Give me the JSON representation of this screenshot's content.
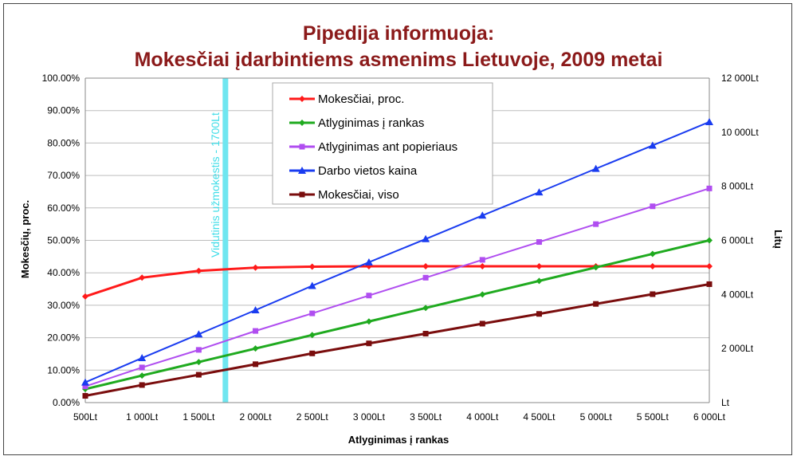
{
  "chart_data": {
    "type": "line",
    "title": [
      "Pipedija informuoja:",
      "Mokesčiai įdarbintiems asmenims Lietuvoje, 2009 metai"
    ],
    "xlabel": "Atlyginimas į rankas",
    "ylabel_left": "Mokesčių, proc.",
    "ylabel_right": "Litų",
    "x": [
      500,
      1000,
      1500,
      2000,
      2500,
      3000,
      3500,
      4000,
      4500,
      5000,
      5500,
      6000
    ],
    "x_tick_labels": [
      "500Lt",
      "1 000Lt",
      "1 500Lt",
      "2 000Lt",
      "2 500Lt",
      "3 000Lt",
      "3 500Lt",
      "4 000Lt",
      "4 500Lt",
      "5 000Lt",
      "5 500Lt",
      "6 000Lt"
    ],
    "ylim_left": [
      0,
      1
    ],
    "y_left_tick_labels": [
      "0.00%",
      "10.00%",
      "20.00%",
      "30.00%",
      "40.00%",
      "50.00%",
      "60.00%",
      "70.00%",
      "80.00%",
      "90.00%",
      "100.00%"
    ],
    "ylim_right": [
      0,
      12000
    ],
    "y_right_tick_labels": [
      "Lt",
      "2 000Lt",
      "4 000Lt",
      "6 000Lt",
      "8 000Lt",
      "10 000Lt",
      "12 000Lt"
    ],
    "grid": "horizontal",
    "legend_position": "top-center",
    "series": [
      {
        "name": "Mokesčiai, proc.",
        "axis": "left",
        "color": "#ff1a1a",
        "marker": "diamond",
        "values": [
          0.327,
          0.385,
          0.406,
          0.416,
          0.419,
          0.42,
          0.42,
          0.42,
          0.42,
          0.42,
          0.42,
          0.42
        ]
      },
      {
        "name": "Atlyginimas į rankas",
        "axis": "right",
        "color": "#1faa1f",
        "marker": "diamond",
        "values": [
          500,
          1000,
          1500,
          2000,
          2500,
          3000,
          3500,
          4000,
          4500,
          5000,
          5500,
          6000
        ]
      },
      {
        "name": "Atlyginimas ant popieriaus",
        "axis": "right",
        "color": "#b04ef0",
        "marker": "square",
        "values": [
          600,
          1300,
          1950,
          2650,
          3300,
          3960,
          4620,
          5280,
          5940,
          6600,
          7260,
          7920
        ]
      },
      {
        "name": "Darbo vietos kaina",
        "axis": "right",
        "color": "#1a3cf0",
        "marker": "triangle",
        "values": [
          750,
          1650,
          2530,
          3420,
          4320,
          5190,
          6050,
          6920,
          7780,
          8650,
          9510,
          10380
        ]
      },
      {
        "name": "Mokesčiai, viso",
        "axis": "right",
        "color": "#7a0d0d",
        "marker": "square",
        "values": [
          250,
          650,
          1030,
          1420,
          1820,
          2190,
          2550,
          2920,
          3280,
          3650,
          4010,
          4380
        ]
      }
    ],
    "annotations": [
      {
        "text": "Vidutinis užmokestis - 1700Lt",
        "x": 1700,
        "color": "#6fe6f0"
      }
    ]
  }
}
